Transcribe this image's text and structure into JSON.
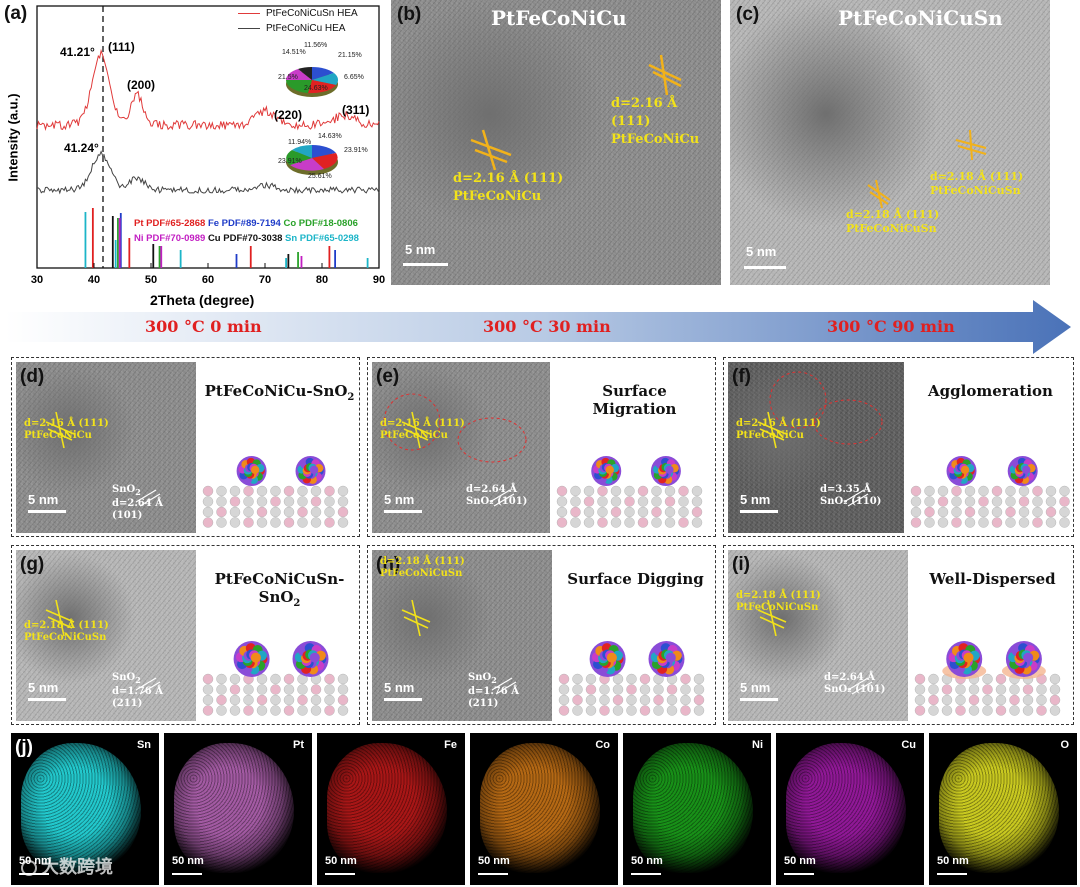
{
  "panel_a": {
    "label": "(a)",
    "ylabel": "Intensity (a.u.)",
    "xlabel": "2Theta (degree)",
    "xticks": [
      "30",
      "40",
      "50",
      "60",
      "70",
      "80",
      "90"
    ],
    "legend": [
      {
        "name": "PtFeCoNiCuSn HEA",
        "color": "#e03a3a"
      },
      {
        "name": "PtFeCoNiCu HEA",
        "color": "#444444"
      }
    ],
    "angle_top": "41.21°",
    "angle_bottom": "41.24°",
    "peaks": [
      "(111)",
      "(200)",
      "(220)",
      "(311)"
    ],
    "pie_top_labels": [
      "11.56%",
      "21.15%",
      "14.51%",
      "6.65%",
      "21.5%",
      "24.63%"
    ],
    "pie_bottom_labels": [
      "14.63%",
      "11.94%",
      "23.91%",
      "23.91%",
      "25.61%"
    ],
    "pdf": [
      {
        "text": "Pt PDF#65-2868",
        "color": "#e02020"
      },
      {
        "text": "Fe PDF#89-7194",
        "color": "#1f3cc8"
      },
      {
        "text": "Co PDF#18-0806",
        "color": "#2aa22a"
      },
      {
        "text": "Ni PDF#70-0989",
        "color": "#c21ec2"
      },
      {
        "text": "Cu PDF#70-3038",
        "color": "#111111"
      },
      {
        "text": "Sn PDF#65-0298",
        "color": "#1cb5c8"
      }
    ]
  },
  "panel_b": {
    "label": "(b)",
    "title": "PtFeCoNiCu",
    "ann1": "d=2.16 Å (111)",
    "ann1b": "PtFeCoNiCu",
    "ann2": "d=2.16 Å (111)",
    "ann2b": "PtFeCoNiCu",
    "scale": "5 nm"
  },
  "panel_c": {
    "label": "(c)",
    "title": "PtFeCoNiCuSn",
    "ann1": "d=2.18 Å (111)",
    "ann1b": "PtFeCoNiCuSn",
    "ann2": "d=2.18 Å (111)",
    "ann2b": "PtFeCoNiCuSn",
    "scale": "5 nm"
  },
  "arrow": {
    "t1": "300 °C 0 min",
    "t2": "300 °C 30 min",
    "t3": "300 °C 90 min",
    "color": "#e02020"
  },
  "panels": [
    {
      "label": "(d)",
      "title": "PtFeCoNiCu-SnO",
      "title_sub": "2",
      "ann": "d=2.16 Å (111)",
      "ann_b": "PtFeCoNiCu",
      "sno_a": "SnO",
      "sno_sub": "2",
      "sno_b": "d=2.64 Å (101)",
      "scale": "5 nm"
    },
    {
      "label": "(e)",
      "title": "Surface Migration",
      "ann": "d=2.16 Å (111)",
      "ann_b": "PtFeCoNiCu",
      "sno_a": "d=2.64 Å",
      "sno_b": "SnO₂ (101)",
      "scale": "5 nm"
    },
    {
      "label": "(f)",
      "title": "Agglomeration",
      "ann": "d=2.16 Å (111)",
      "ann_b": "PtFeCoNiCu",
      "sno_a": "d=3.35 Å",
      "sno_b": "SnO₂ (110)",
      "scale": "5 nm"
    },
    {
      "label": "(g)",
      "title": "PtFeCoNiCuSn-SnO",
      "title_sub": "2",
      "ann": "d=2.18 Å (111)",
      "ann_b": "PtFeCoNiCuSn",
      "sno_a": "SnO",
      "sno_sub": "2",
      "sno_b": "d=1.76 Å (211)",
      "scale": "5 nm"
    },
    {
      "label": "(h)",
      "title": "Surface Digging",
      "ann": "d=2.18 Å (111)",
      "ann_b": "PtFeCoNiCuSn",
      "sno_a": "SnO",
      "sno_sub": "2",
      "sno_b": "d=1.76 Å (211)",
      "scale": "5 nm"
    },
    {
      "label": "(i)",
      "title": "Well-Dispersed",
      "ann": "d=2.18 Å (111)",
      "ann_b": "PtFeCoNiCuSn",
      "sno_a": "d=2.64 Å",
      "sno_b": "SnO₂ (101)",
      "scale": "5 nm"
    }
  ],
  "panel_j": {
    "label": "(j)",
    "scale": "50 nm",
    "maps": [
      {
        "el": "Sn",
        "color": "#22c8cc"
      },
      {
        "el": "Pt",
        "color": "#d878d8"
      },
      {
        "el": "Fe",
        "color": "#e01e1e"
      },
      {
        "el": "Co",
        "color": "#f08a1a"
      },
      {
        "el": "Ni",
        "color": "#20c020"
      },
      {
        "el": "Cu",
        "color": "#c020c8"
      },
      {
        "el": "O",
        "color": "#c8c820"
      }
    ],
    "watermark": "大数跨境"
  }
}
